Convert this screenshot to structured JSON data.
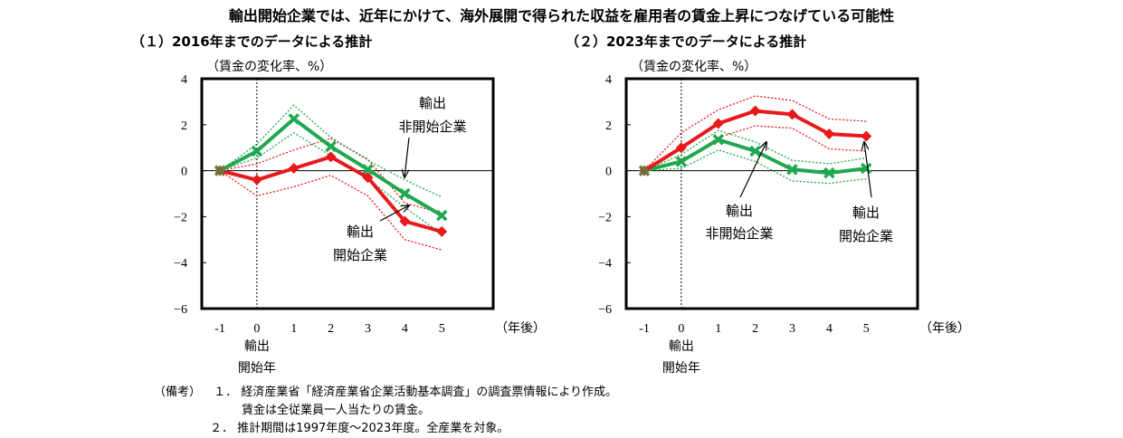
{
  "title": "輸出開始企業では、近年にかけて、海外展開で得られた収益を雇用者の賃金上昇につなげている可能性",
  "colors": {
    "start": "#e8191b",
    "non_start": "#1fa84f"
  },
  "chart_data": [
    {
      "type": "line",
      "title": "（１）2016年までのデータによる推計",
      "ylabel": "（賃金の変化率、%）",
      "xlabel": "（年後）",
      "x_zero_label": [
        "輸出",
        "開始年"
      ],
      "categories": [
        "-1",
        "0",
        "1",
        "2",
        "3",
        "4",
        "5"
      ],
      "ylim": [
        -6,
        4
      ],
      "yticks": [
        "4",
        "2",
        "0",
        "−2",
        "−4",
        "−6"
      ],
      "series": [
        {
          "name": "輸出開始企業",
          "values": [
            0,
            -0.4,
            0.1,
            0.6,
            -0.3,
            -2.2,
            -2.65
          ],
          "upper": [
            0,
            0.3,
            0.9,
            1.4,
            0.5,
            -1.4,
            -1.85
          ],
          "lower": [
            0,
            -1.1,
            -0.7,
            -0.2,
            -1.1,
            -3.0,
            -3.45
          ]
        },
        {
          "name": "輸出非開始企業",
          "values": [
            0,
            0.85,
            2.25,
            1.05,
            0.05,
            -1.0,
            -1.95
          ],
          "upper": [
            0,
            1.15,
            2.85,
            1.45,
            0.45,
            -0.4,
            -1.15
          ],
          "lower": [
            0,
            0.55,
            1.65,
            0.65,
            -0.35,
            -1.6,
            -2.75
          ]
        }
      ],
      "annotations": [
        {
          "lines": [
            "輸出",
            "非開始企業"
          ]
        },
        {
          "lines": [
            "輸出",
            "開始企業"
          ]
        }
      ]
    },
    {
      "type": "line",
      "title": "（２）2023年までのデータによる推計",
      "ylabel": "（賃金の変化率、%）",
      "xlabel": "（年後）",
      "x_zero_label": [
        "輸出",
        "開始年"
      ],
      "categories": [
        "-1",
        "0",
        "1",
        "2",
        "3",
        "4",
        "5"
      ],
      "ylim": [
        -6,
        4
      ],
      "yticks": [
        "4",
        "2",
        "0",
        "−2",
        "−4",
        "−6"
      ],
      "series": [
        {
          "name": "輸出開始企業",
          "values": [
            0,
            1.0,
            2.05,
            2.6,
            2.45,
            1.6,
            1.5
          ],
          "upper": [
            0,
            1.65,
            2.65,
            3.25,
            3.05,
            2.25,
            2.15
          ],
          "lower": [
            0,
            0.35,
            1.45,
            1.95,
            1.85,
            0.95,
            0.85
          ]
        },
        {
          "name": "輸出非開始企業",
          "values": [
            0,
            0.4,
            1.35,
            0.85,
            0.05,
            -0.1,
            0.1
          ],
          "upper": [
            0,
            0.7,
            1.75,
            1.25,
            0.45,
            0.3,
            0.55
          ],
          "lower": [
            0,
            0.1,
            0.9,
            0.4,
            -0.45,
            -0.55,
            -0.35
          ]
        }
      ],
      "annotations": [
        {
          "lines": [
            "輸出",
            "非開始企業"
          ]
        },
        {
          "lines": [
            "輸出",
            "開始企業"
          ]
        }
      ]
    }
  ],
  "notes": [
    {
      "label": "（備考）",
      "num": "１．",
      "text": "経済産業省「経済産業省企業活動基本調査」の調査票情報により作成。"
    },
    {
      "label": "",
      "num": "",
      "text": "賃金は全従業員一人当たりの賃金。"
    },
    {
      "label": "",
      "num": "２．",
      "text": "推計期間は1997年度～2023年度。全産業を対象。"
    }
  ]
}
